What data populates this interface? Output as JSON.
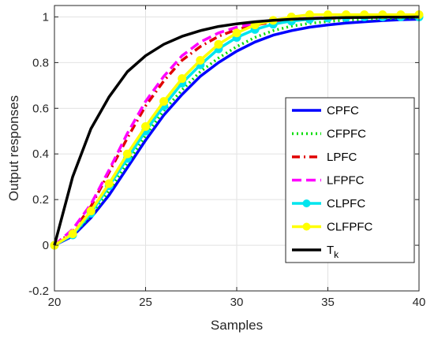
{
  "chart_data": {
    "type": "line",
    "xlabel": "Samples",
    "ylabel": "Output responses",
    "xlim": [
      20,
      40
    ],
    "ylim": [
      -0.2,
      1.05
    ],
    "xticks": [
      20,
      25,
      30,
      35,
      40
    ],
    "yticks": [
      -0.2,
      0,
      0.2,
      0.4,
      0.6,
      0.8,
      1
    ],
    "xtick_labels": [
      "20",
      "25",
      "30",
      "35",
      "40"
    ],
    "ytick_labels": [
      "-0.2",
      "0",
      "0.2",
      "0.4",
      "0.6",
      "0.8",
      "1"
    ],
    "grid": true,
    "legend_position": "right",
    "x": [
      20,
      21,
      22,
      23,
      24,
      25,
      26,
      27,
      28,
      29,
      30,
      31,
      32,
      33,
      34,
      35,
      36,
      37,
      38,
      39,
      40
    ],
    "series": [
      {
        "name": "CPFC",
        "color": "#0000ff",
        "style": "solid",
        "marker": "none",
        "values": [
          0,
          0.04,
          0.12,
          0.22,
          0.34,
          0.46,
          0.57,
          0.66,
          0.74,
          0.8,
          0.85,
          0.89,
          0.92,
          0.94,
          0.955,
          0.965,
          0.973,
          0.979,
          0.984,
          0.988,
          0.99
        ]
      },
      {
        "name": "CFPFC",
        "color": "#00dd00",
        "style": "dotted",
        "marker": "none",
        "values": [
          0,
          0.045,
          0.13,
          0.24,
          0.36,
          0.48,
          0.59,
          0.68,
          0.76,
          0.82,
          0.87,
          0.91,
          0.94,
          0.96,
          0.972,
          0.98,
          0.986,
          0.99,
          0.993,
          0.995,
          0.997
        ]
      },
      {
        "name": "LPFC",
        "color": "#e00000",
        "style": "dashdot",
        "marker": "none",
        "values": [
          0,
          0.06,
          0.17,
          0.32,
          0.47,
          0.61,
          0.72,
          0.81,
          0.87,
          0.915,
          0.945,
          0.965,
          0.978,
          0.986,
          0.991,
          0.994,
          0.996,
          0.998,
          0.999,
          0.999,
          1.0
        ]
      },
      {
        "name": "LFPFC",
        "color": "#ff00ff",
        "style": "dashed",
        "marker": "none",
        "values": [
          0,
          0.07,
          0.18,
          0.33,
          0.49,
          0.63,
          0.74,
          0.83,
          0.89,
          0.93,
          0.955,
          0.972,
          0.983,
          0.99,
          0.994,
          0.996,
          0.998,
          0.999,
          1.0,
          1.0,
          1.0
        ]
      },
      {
        "name": "CLPFC",
        "color": "#00e5ee",
        "style": "solid",
        "marker": "circle",
        "values": [
          0,
          0.045,
          0.14,
          0.26,
          0.38,
          0.5,
          0.61,
          0.71,
          0.79,
          0.86,
          0.91,
          0.945,
          0.968,
          0.982,
          0.99,
          0.995,
          0.998,
          1.0,
          1.0,
          1.0,
          1.0
        ]
      },
      {
        "name": "CLFPFC",
        "color": "#ffff00",
        "style": "solid",
        "marker": "circle",
        "values": [
          0,
          0.05,
          0.15,
          0.27,
          0.4,
          0.52,
          0.63,
          0.73,
          0.81,
          0.88,
          0.93,
          0.965,
          0.985,
          1.0,
          1.01,
          1.01,
          1.01,
          1.01,
          1.01,
          1.01,
          1.01
        ]
      },
      {
        "name": "T_k",
        "color": "#000000",
        "style": "solid",
        "marker": "none",
        "values": [
          0,
          0.3,
          0.51,
          0.65,
          0.76,
          0.83,
          0.88,
          0.915,
          0.94,
          0.958,
          0.97,
          0.979,
          0.985,
          0.99,
          0.993,
          0.995,
          0.997,
          0.998,
          0.999,
          0.999,
          1.0
        ]
      }
    ],
    "legend": [
      {
        "label": "CPFC",
        "sub": ""
      },
      {
        "label": "CFPFC",
        "sub": ""
      },
      {
        "label": "LPFC",
        "sub": ""
      },
      {
        "label": "LFPFC",
        "sub": ""
      },
      {
        "label": "CLPFC",
        "sub": ""
      },
      {
        "label": "CLFPFC",
        "sub": ""
      },
      {
        "label": "T",
        "sub": "k"
      }
    ]
  }
}
